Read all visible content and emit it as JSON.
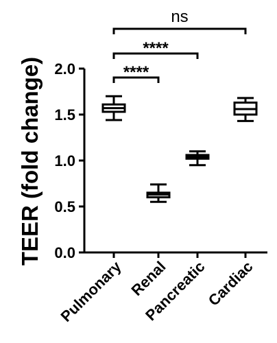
{
  "chart_data": {
    "type": "box",
    "title": "",
    "xlabel": "",
    "ylabel": "TEER (fold change)",
    "ylim": [
      0.0,
      2.0
    ],
    "yticks": [
      "0.0",
      "0.5",
      "1.0",
      "1.5",
      "2.0"
    ],
    "grid": false,
    "categories": [
      "Pulmonary",
      "Renal",
      "Pancreatic",
      "Cardiac"
    ],
    "boxes": [
      {
        "category": "Pulmonary",
        "min": 1.44,
        "q1": 1.53,
        "median": 1.57,
        "q3": 1.61,
        "max": 1.7
      },
      {
        "category": "Renal",
        "min": 0.55,
        "q1": 0.6,
        "median": 0.63,
        "q3": 0.65,
        "max": 0.74
      },
      {
        "category": "Pancreatic",
        "min": 0.95,
        "q1": 1.02,
        "median": 1.04,
        "q3": 1.06,
        "max": 1.1
      },
      {
        "category": "Cardiac",
        "min": 1.43,
        "q1": 1.5,
        "median": 1.56,
        "q3": 1.63,
        "max": 1.68
      }
    ],
    "annotations": [
      {
        "from": "Pulmonary",
        "to": "Renal",
        "label": "****"
      },
      {
        "from": "Pulmonary",
        "to": "Pancreatic",
        "label": "****"
      },
      {
        "from": "Pulmonary",
        "to": "Cardiac",
        "label": "ns"
      }
    ]
  }
}
